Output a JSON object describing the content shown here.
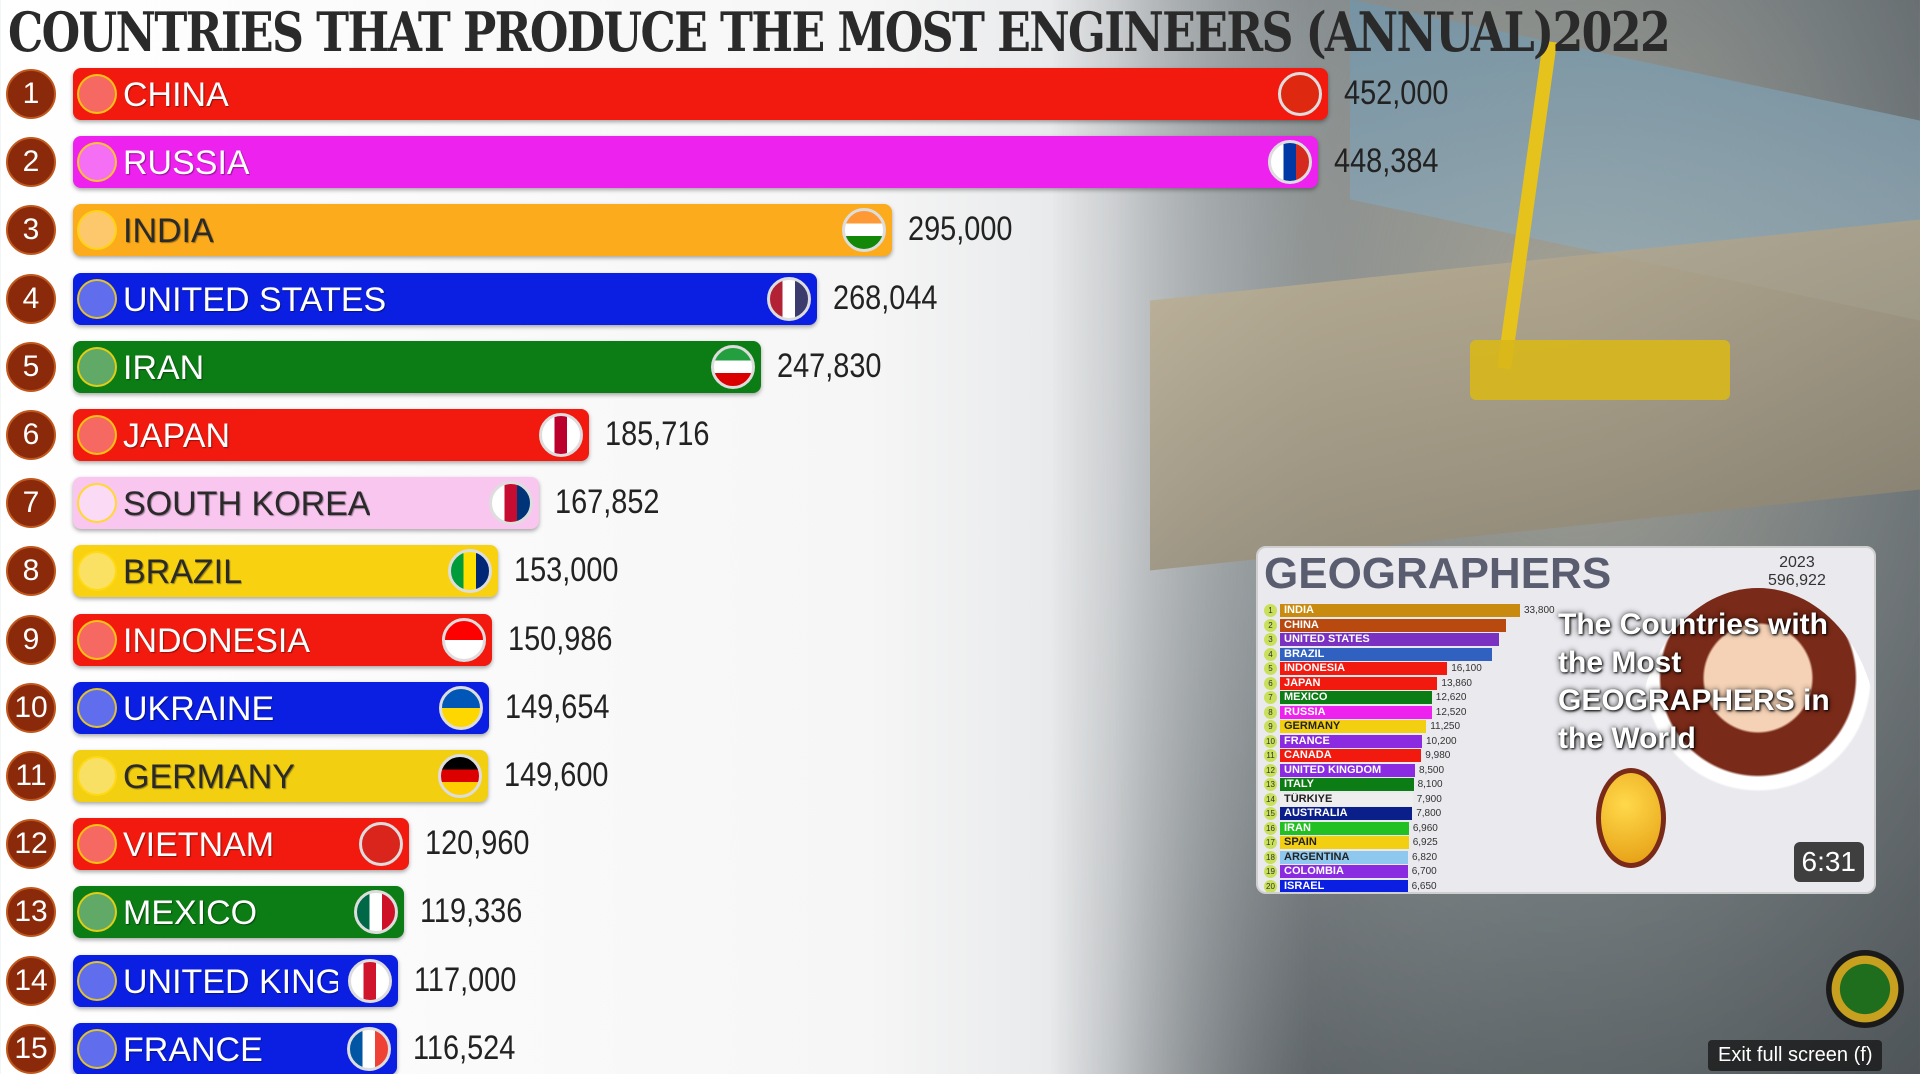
{
  "chart_data": {
    "type": "bar",
    "orientation": "horizontal",
    "title": "COUNTRIES THAT PRODUCE THE MOST ENGINEERS (ANNUAL)2022",
    "categories": [
      "CHINA",
      "RUSSIA",
      "INDIA",
      "UNITED STATES",
      "IRAN",
      "JAPAN",
      "SOUTH KOREA",
      "BRAZIL",
      "INDONESIA",
      "UKRAINE",
      "GERMANY",
      "VIETNAM",
      "MEXICO",
      "UNITED KINGDOM",
      "FRANCE"
    ],
    "values": [
      452000,
      448384,
      295000,
      268044,
      247830,
      185716,
      167852,
      153000,
      150986,
      149654,
      149600,
      120960,
      119336,
      117000,
      116524
    ],
    "labels": [
      "452,000",
      "448,384",
      "295,000",
      "268,044",
      "247,830",
      "185,716",
      "167,852",
      "153,000",
      "150,986",
      "149,654",
      "149,600",
      "120,960",
      "119,336",
      "117,000",
      "116,524"
    ],
    "colors": [
      "#f2190f",
      "#ee22ee",
      "#fbab1c",
      "#0b1fe3",
      "#0c7c14",
      "#f2190f",
      "#f9c6f0",
      "#f8d210",
      "#f2190f",
      "#0b1fe3",
      "#f3cf12",
      "#f2190f",
      "#0c7c14",
      "#0b1fe3",
      "#0b1fe3"
    ],
    "text_colors": [
      "#fff",
      "#fff",
      "#2a2a2a",
      "#fff",
      "#fff",
      "#fff",
      "#2a2a2a",
      "#2a2a2a",
      "#fff",
      "#fff",
      "#2a2a2a",
      "#fff",
      "#fff",
      "#fff",
      "#fff"
    ],
    "flag_colors": [
      [
        "#de2910",
        "#de2910"
      ],
      [
        "#ffffff",
        "#0039a6",
        "#d52b1e"
      ],
      [
        "#ff9933",
        "#ffffff",
        "#138808"
      ],
      [
        "#b22234",
        "#ffffff",
        "#3c3b6e"
      ],
      [
        "#239f40",
        "#ffffff",
        "#da0000"
      ],
      [
        "#ffffff",
        "#bc002d",
        "#ffffff"
      ],
      [
        "#ffffff",
        "#c60c30",
        "#003478"
      ],
      [
        "#009c3b",
        "#ffdf00",
        "#002776"
      ],
      [
        "#ff0000",
        "#ffffff"
      ],
      [
        "#0057b7",
        "#ffd700"
      ],
      [
        "#000000",
        "#dd0000",
        "#ffce00"
      ],
      [
        "#da251d",
        "#da251d"
      ],
      [
        "#006847",
        "#ffffff",
        "#ce1126"
      ],
      [
        "#ffffff",
        "#cf142b",
        "#ffffff"
      ],
      [
        "#0055a4",
        "#ffffff",
        "#ef4135"
      ]
    ],
    "xlim": [
      0,
      452000
    ],
    "grid": false
  },
  "thumbnail": {
    "title_line1": "The Countries with the Most",
    "title_line2": "GEOGRAPHERS in the World",
    "header": "GEOGRAPHERS",
    "year": "2023",
    "total": "596,922",
    "duration": "6:31",
    "rows": [
      {
        "rank": "1",
        "name": "INDIA",
        "value": "33,800",
        "color": "#c98a10",
        "frac": 1
      },
      {
        "rank": "2",
        "name": "CHINA",
        "value": "",
        "color": "#b84a10",
        "frac": 0.9
      },
      {
        "rank": "3",
        "name": "UNITED STATES",
        "value": "",
        "color": "#7a30c0",
        "frac": 0.85
      },
      {
        "rank": "4",
        "name": "BRAZIL",
        "value": "",
        "color": "#3060c0",
        "frac": 0.8
      },
      {
        "rank": "5",
        "name": "INDONESIA",
        "value": "16,100",
        "color": "#f2190f",
        "frac": 0.48
      },
      {
        "rank": "6",
        "name": "JAPAN",
        "value": "13,860",
        "color": "#f2190f",
        "frac": 0.41
      },
      {
        "rank": "7",
        "name": "MEXICO",
        "value": "12,620",
        "color": "#0c7c14",
        "frac": 0.37
      },
      {
        "rank": "8",
        "name": "RUSSIA",
        "value": "12,520",
        "color": "#ee22ee",
        "frac": 0.37
      },
      {
        "rank": "9",
        "name": "GERMANY",
        "value": "11,250",
        "color": "#f3cf12",
        "frac": 0.33
      },
      {
        "rank": "10",
        "name": "FRANCE",
        "value": "10,200",
        "color": "#8a2be2",
        "frac": 0.3
      },
      {
        "rank": "11",
        "name": "CANADA",
        "value": "9,980",
        "color": "#f2190f",
        "frac": 0.295
      },
      {
        "rank": "12",
        "name": "UNITED KINGDOM",
        "value": "8,500",
        "color": "#8a2be2",
        "frac": 0.25
      },
      {
        "rank": "13",
        "name": "ITALY",
        "value": "8,100",
        "color": "#0c7c14",
        "frac": 0.24
      },
      {
        "rank": "14",
        "name": "TÜRKIYE",
        "value": "7,900",
        "color": "#eeeeee",
        "frac": 0.234
      },
      {
        "rank": "15",
        "name": "AUSTRALIA",
        "value": "7,800",
        "color": "#0b1f8a",
        "frac": 0.23
      },
      {
        "rank": "16",
        "name": "IRAN",
        "value": "6,960",
        "color": "#22c022",
        "frac": 0.206
      },
      {
        "rank": "17",
        "name": "SPAIN",
        "value": "6,925",
        "color": "#f3cf12",
        "frac": 0.205
      },
      {
        "rank": "18",
        "name": "ARGENTINA",
        "value": "6,820",
        "color": "#8ec8ee",
        "frac": 0.2
      },
      {
        "rank": "19",
        "name": "COLOMBIA",
        "value": "6,700",
        "color": "#8a2be2",
        "frac": 0.198
      },
      {
        "rank": "20",
        "name": "ISRAEL",
        "value": "6,650",
        "color": "#0b1fe3",
        "frac": 0.197
      }
    ]
  },
  "exit_fullscreen": "Exit full screen (f)"
}
